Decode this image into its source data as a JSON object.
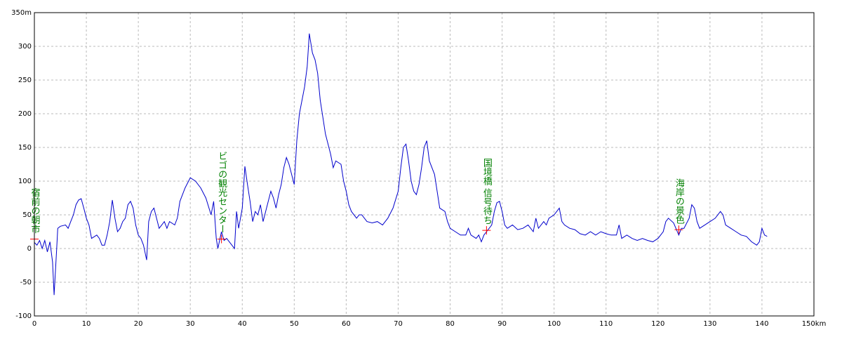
{
  "chart_data": {
    "type": "line",
    "x": [
      0,
      0.5,
      1,
      1.5,
      2,
      2.5,
      3,
      3.5,
      3.8,
      4.3,
      4.5,
      5,
      6,
      6.5,
      7,
      7.5,
      8,
      8.5,
      9,
      9.5,
      10,
      10.5,
      11,
      12,
      12.5,
      13,
      13.5,
      14,
      14.5,
      15,
      15.5,
      16,
      16.5,
      17,
      17.5,
      18,
      18.5,
      19,
      19.5,
      20,
      20.5,
      21,
      21.6,
      22,
      22.5,
      23,
      23.5,
      24,
      24.5,
      25,
      25.5,
      26,
      27,
      27.5,
      28,
      29,
      30,
      31,
      32,
      33,
      34,
      34.5,
      35,
      35.3,
      36,
      36.5,
      37,
      38,
      38.5,
      38.9,
      39.3,
      40,
      40.5,
      41,
      41.5,
      42,
      42.5,
      43,
      43.5,
      44,
      44.5,
      45,
      45.5,
      46,
      46.5,
      47,
      47.5,
      48,
      48.5,
      49,
      49.5,
      50,
      50.5,
      51,
      52,
      52.5,
      52.9,
      53.5,
      54,
      54.5,
      55,
      56,
      57,
      57.5,
      58,
      59,
      59.5,
      60,
      60.5,
      61,
      62,
      62.5,
      63,
      64,
      65,
      66,
      67,
      68,
      69,
      70,
      70.5,
      71,
      71.5,
      72,
      72.5,
      73,
      73.5,
      74,
      74.5,
      75,
      75.5,
      76,
      77,
      77.5,
      78,
      79,
      79.5,
      80,
      81,
      82,
      83,
      83.5,
      84,
      85,
      85.5,
      86,
      86.5,
      87,
      88,
      88.5,
      89,
      89.5,
      90,
      90.5,
      91,
      92,
      93,
      94,
      95,
      96,
      96.5,
      97,
      98,
      98.5,
      99,
      100,
      101,
      101.5,
      102,
      103,
      104,
      105,
      106,
      107,
      108,
      109,
      110,
      111,
      112,
      112.5,
      113,
      114,
      115,
      116,
      117,
      118,
      119,
      120,
      121,
      121.5,
      122,
      123,
      124,
      124.5,
      125,
      126,
      126.5,
      127,
      127.5,
      128,
      129,
      130,
      131,
      132,
      132.5,
      133,
      134,
      135,
      136,
      137,
      138,
      139,
      139.5,
      140,
      140.5,
      141
    ],
    "values": [
      9,
      5,
      12,
      0,
      12,
      -5,
      10,
      -20,
      -69,
      0,
      30,
      33,
      35,
      30,
      40,
      50,
      65,
      72,
      74,
      60,
      45,
      35,
      15,
      20,
      15,
      5,
      5,
      20,
      40,
      72,
      45,
      25,
      30,
      40,
      45,
      65,
      70,
      60,
      35,
      20,
      15,
      5,
      -17,
      40,
      55,
      60,
      45,
      30,
      35,
      40,
      30,
      40,
      35,
      45,
      70,
      90,
      105,
      100,
      90,
      75,
      50,
      70,
      15,
      0,
      25,
      12,
      15,
      5,
      0,
      55,
      30,
      60,
      122,
      95,
      70,
      40,
      55,
      50,
      65,
      40,
      55,
      70,
      85,
      75,
      60,
      80,
      95,
      120,
      135,
      125,
      110,
      95,
      160,
      200,
      240,
      270,
      319,
      290,
      280,
      260,
      220,
      170,
      140,
      120,
      130,
      125,
      100,
      85,
      65,
      55,
      45,
      50,
      50,
      40,
      38,
      40,
      35,
      45,
      60,
      85,
      120,
      150,
      155,
      130,
      100,
      85,
      80,
      95,
      120,
      150,
      160,
      130,
      110,
      85,
      60,
      55,
      40,
      30,
      25,
      20,
      20,
      30,
      20,
      15,
      20,
      10,
      20,
      25,
      35,
      55,
      68,
      70,
      55,
      35,
      30,
      35,
      28,
      30,
      35,
      25,
      45,
      30,
      40,
      35,
      45,
      50,
      60,
      40,
      35,
      30,
      28,
      22,
      20,
      25,
      20,
      25,
      22,
      20,
      20,
      35,
      15,
      20,
      15,
      12,
      15,
      12,
      10,
      15,
      25,
      40,
      45,
      38,
      20,
      30,
      30,
      45,
      65,
      60,
      40,
      30,
      35,
      40,
      45,
      55,
      50,
      35,
      30,
      25,
      20,
      18,
      10,
      5,
      10,
      30,
      20,
      18
    ],
    "color": "#0000cc",
    "xlim": [
      0,
      150
    ],
    "xticks": [
      0,
      10,
      20,
      30,
      40,
      50,
      60,
      70,
      80,
      90,
      100,
      110,
      120,
      130,
      140,
      {
        "value": 150,
        "label": "150km"
      }
    ],
    "ylim": [
      -100,
      350
    ],
    "yticks": [
      -100,
      -50,
      0,
      50,
      100,
      150,
      200,
      250,
      300,
      {
        "value": 350,
        "label": "350m"
      }
    ],
    "grid": true,
    "annotations": [
      {
        "text": "宿前の朝市",
        "x": 0,
        "y": 14
      },
      {
        "text": "ビゴの観光センター",
        "x": 36,
        "y": 14
      },
      {
        "text": "国境橋 信号待ち",
        "x": 87,
        "y": 27
      },
      {
        "text": "海岸の景色",
        "x": 124,
        "y": 28
      }
    ],
    "annotation_color": "#008000",
    "marker_color": "#ff0000"
  }
}
